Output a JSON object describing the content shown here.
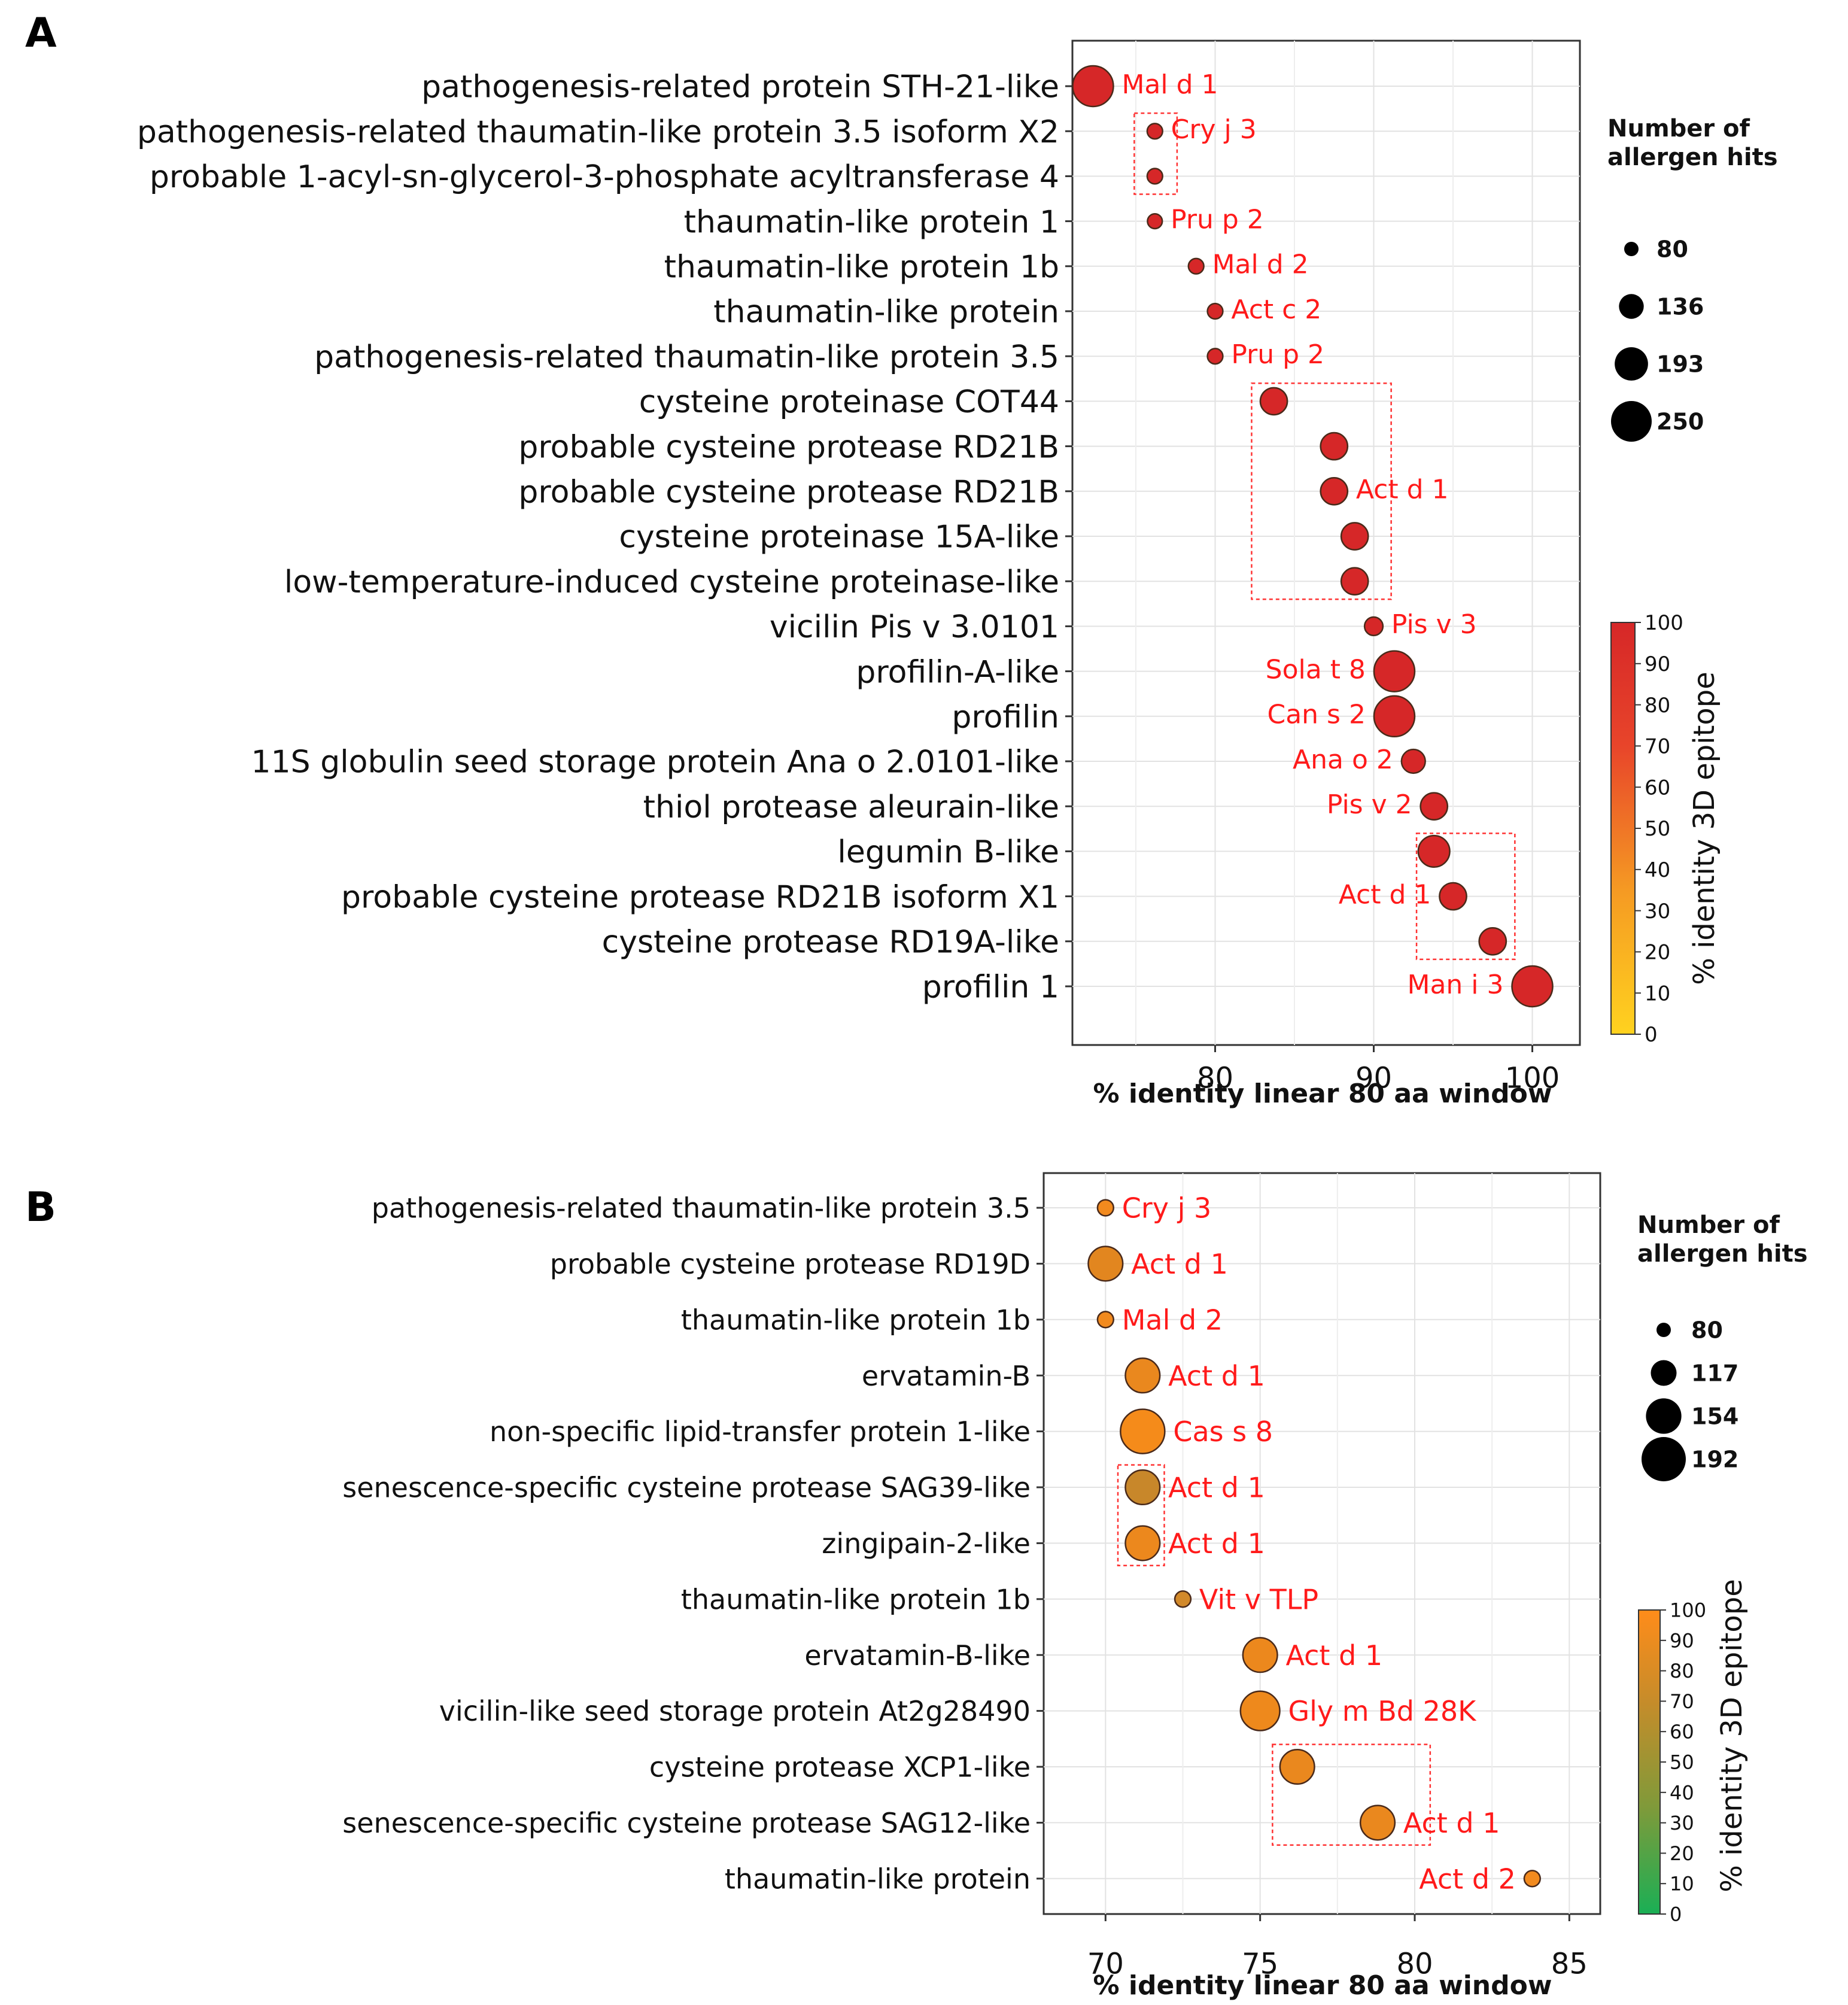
{
  "chart_data": [
    {
      "type": "scatter",
      "panel": "A",
      "xlabel": "% identity linear 80 aa window",
      "xlim": [
        71,
        103
      ],
      "xticks": [
        80,
        90,
        100
      ],
      "size_legend_title": [
        "Number of",
        "allergen hits"
      ],
      "size_legend": [
        80,
        136,
        193,
        250
      ],
      "colorbar_label": "% identity 3D epitope",
      "colorbar_ticks": [
        0,
        10,
        20,
        30,
        40,
        50,
        60,
        70,
        80,
        90,
        100
      ],
      "colorbar_colors": [
        "#ffd21f",
        "#f59a23",
        "#e8452a",
        "#d62728"
      ],
      "points": [
        {
          "protein": "pathogenesis-related protein STH-21-like",
          "x": 72.3,
          "hits": 250,
          "color": "#d62728",
          "allergen": "Mal d 1"
        },
        {
          "protein": "pathogenesis-related thaumatin-like protein 3.5 isoform X2",
          "x": 76.2,
          "hits": 85,
          "color": "#d62728",
          "allergen": "Cry j 3"
        },
        {
          "protein": "probable 1-acyl-sn-glycerol-3-phosphate acyltransferase 4",
          "x": 76.2,
          "hits": 85,
          "color": "#d62728",
          "allergen": ""
        },
        {
          "protein": "thaumatin-like protein 1",
          "x": 76.2,
          "hits": 82,
          "color": "#d62728",
          "allergen": "Pru p 2"
        },
        {
          "protein": "thaumatin-like protein 1b",
          "x": 78.8,
          "hits": 85,
          "color": "#d62728",
          "allergen": "Mal d 2"
        },
        {
          "protein": "thaumatin-like protein",
          "x": 80.0,
          "hits": 85,
          "color": "#d62728",
          "allergen": "Act c 2"
        },
        {
          "protein": "pathogenesis-related thaumatin-like protein 3.5",
          "x": 80.0,
          "hits": 85,
          "color": "#d62728",
          "allergen": "Pru p 2"
        },
        {
          "protein": "cysteine proteinase COT44",
          "x": 83.7,
          "hits": 150,
          "color": "#d62728",
          "allergen": ""
        },
        {
          "protein": "probable cysteine protease RD21B",
          "x": 87.5,
          "hits": 150,
          "color": "#d62728",
          "allergen": ""
        },
        {
          "protein": "probable cysteine protease RD21B",
          "x": 87.5,
          "hits": 150,
          "color": "#d62728",
          "allergen": "Act d 1"
        },
        {
          "protein": "cysteine proteinase 15A-like",
          "x": 88.8,
          "hits": 150,
          "color": "#d62728",
          "allergen": ""
        },
        {
          "protein": "low-temperature-induced cysteine proteinase-like",
          "x": 88.8,
          "hits": 150,
          "color": "#d62728",
          "allergen": ""
        },
        {
          "protein": "vicilin Pis v 3.0101",
          "x": 90.0,
          "hits": 100,
          "color": "#d62728",
          "allergen": "Pis v 3"
        },
        {
          "protein": "profilin-A-like",
          "x": 91.3,
          "hits": 250,
          "color": "#d62728",
          "allergen": "Sola t 8"
        },
        {
          "protein": "profilin",
          "x": 91.3,
          "hits": 250,
          "color": "#d62728",
          "allergen": "Can s 2"
        },
        {
          "protein": "11S globulin seed storage protein Ana o 2.0101-like",
          "x": 92.5,
          "hits": 130,
          "color": "#d62728",
          "allergen": "Ana o 2"
        },
        {
          "protein": "thiol protease aleurain-like",
          "x": 93.8,
          "hits": 150,
          "color": "#d62728",
          "allergen": "Pis v 2"
        },
        {
          "protein": "legumin B-like",
          "x": 93.8,
          "hits": 180,
          "color": "#d62728",
          "allergen": ""
        },
        {
          "protein": "probable cysteine protease RD21B isoform X1",
          "x": 95.0,
          "hits": 150,
          "color": "#d62728",
          "allergen": "Act d 1"
        },
        {
          "protein": "cysteine protease RD19A-like",
          "x": 97.5,
          "hits": 150,
          "color": "#d62728",
          "allergen": ""
        },
        {
          "protein": "profilin 1",
          "x": 100.0,
          "hits": 250,
          "color": "#d62728",
          "allergen": "Man i 3"
        }
      ],
      "boxes": [
        {
          "rows": [
            1,
            2
          ],
          "x": [
            74.9,
            77.6
          ]
        },
        {
          "rows": [
            7,
            11
          ],
          "x": [
            82.3,
            91.1
          ]
        },
        {
          "rows": [
            17,
            19
          ],
          "x": [
            92.7,
            98.9
          ]
        }
      ]
    },
    {
      "type": "scatter",
      "panel": "B",
      "xlabel": "% identity linear 80 aa window",
      "xlim": [
        68,
        86
      ],
      "xticks": [
        70,
        75,
        80,
        85
      ],
      "size_legend_title": [
        "Number of",
        "allergen hits"
      ],
      "size_legend": [
        80,
        117,
        154,
        192
      ],
      "colorbar_label": "% identity 3D epitope",
      "colorbar_ticks": [
        0,
        10,
        20,
        30,
        40,
        50,
        60,
        70,
        80,
        90,
        100
      ],
      "colorbar_colors": [
        "#1aaf55",
        "#7f9a3a",
        "#c68c2a",
        "#ff8c1a"
      ],
      "points": [
        {
          "protein": "pathogenesis-related thaumatin-like protein 3.5",
          "x": 70.0,
          "hits": 85,
          "color": "#f28a1e",
          "allergen": "Cry j 3"
        },
        {
          "protein": "probable cysteine protease RD19D",
          "x": 70.0,
          "hits": 150,
          "color": "#e2861f",
          "allergen": "Act d 1"
        },
        {
          "protein": "thaumatin-like protein 1b",
          "x": 70.0,
          "hits": 85,
          "color": "#f28a1e",
          "allergen": "Mal d 2"
        },
        {
          "protein": "ervatamin-B",
          "x": 71.2,
          "hits": 150,
          "color": "#ea881e",
          "allergen": "Act d 1"
        },
        {
          "protein": "non-specific lipid-transfer protein 1-like",
          "x": 71.2,
          "hits": 192,
          "color": "#f58b1a",
          "allergen": "Cas s 8"
        },
        {
          "protein": "senescence-specific cysteine protease SAG39-like",
          "x": 71.2,
          "hits": 150,
          "color": "#c8872a",
          "allergen": "Act d 1"
        },
        {
          "protein": "zingipain-2-like",
          "x": 71.2,
          "hits": 150,
          "color": "#ec881d",
          "allergen": "Act d 1"
        },
        {
          "protein": "thaumatin-like protein 1b",
          "x": 72.5,
          "hits": 85,
          "color": "#d2892a",
          "allergen": "Vit v TLP"
        },
        {
          "protein": "ervatamin-B-like",
          "x": 75.0,
          "hits": 150,
          "color": "#ec881d",
          "allergen": "Act d 1"
        },
        {
          "protein": "vicilin-like seed storage protein At2g28490",
          "x": 75.0,
          "hits": 170,
          "color": "#ee891c",
          "allergen": "Gly m Bd 28K"
        },
        {
          "protein": "cysteine protease XCP1-like",
          "x": 76.2,
          "hits": 150,
          "color": "#ea881e",
          "allergen": ""
        },
        {
          "protein": "senescence-specific cysteine protease SAG12-like",
          "x": 78.8,
          "hits": 150,
          "color": "#ea881e",
          "allergen": "Act d 1"
        },
        {
          "protein": "thaumatin-like protein",
          "x": 83.8,
          "hits": 85,
          "color": "#f28a1e",
          "allergen": "Act d 2"
        }
      ],
      "boxes": [
        {
          "rows": [
            5,
            6
          ],
          "x": [
            70.4,
            71.9
          ]
        },
        {
          "rows": [
            10,
            11
          ],
          "x": [
            75.4,
            80.5
          ]
        }
      ]
    }
  ],
  "panels": {
    "A": {
      "letter": "A",
      "legend_title_1": "Number of",
      "legend_title_2": "allergen hits",
      "xlabel": "% identity linear 80 aa window",
      "colorbar_label": "% identity 3D epitope"
    },
    "B": {
      "letter": "B",
      "legend_title_1": "Number of",
      "legend_title_2": "allergen hits",
      "xlabel": "% identity linear 80 aa window",
      "colorbar_label": "% identity 3D epitope"
    }
  }
}
